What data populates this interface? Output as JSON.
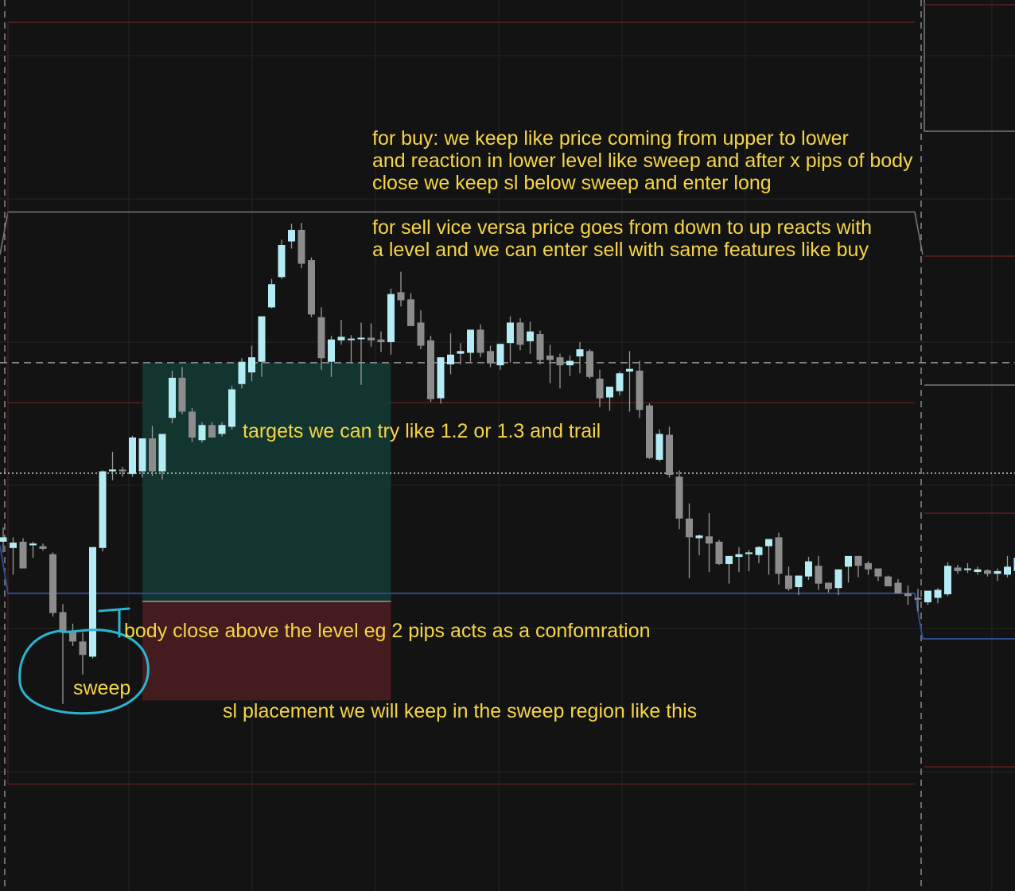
{
  "colors": {
    "background": "#131313",
    "grid": "#262626",
    "bull_candle": "#b3ecf5",
    "bear_candle": "#8c8c8c",
    "wick": "#9a9a9a",
    "annotation_text": "#f5d547",
    "sweep_marker": "#2bb5cf",
    "target_zone": "#133a33",
    "stop_zone": "#4a1d20",
    "key_level": "#2f4a8f",
    "range_upper": "#7a7a7a",
    "range_red": "#5a2020",
    "session_divider": "#8a8a8a"
  },
  "annotations": {
    "buy_note": "for buy: we keep like price coming from upper to lower\nand reaction in lower level like sweep and after x pips of body\nclose we keep sl below sweep and enter long",
    "sell_note": "for sell vice versa price goes from down to up reacts with\na level and we can enter sell with same features like buy",
    "targets_note": "targets we can try like 1.2 or 1.3 and trail",
    "body_close_note": "body close above the level eg 2 pips acts as a confomration",
    "sweep_label": "sweep",
    "sl_note": "sl placement we will keep in the sweep region like this"
  },
  "chart_data": {
    "type": "candlestick",
    "title": "",
    "xlabel": "",
    "ylabel": "",
    "y_range": [
      0,
      100
    ],
    "note": "no price axis visible; values in relative price units (100 = top of view)",
    "candles": [
      {
        "o": 39.2,
        "h": 40.8,
        "l": 38.0,
        "c": 39.7
      },
      {
        "o": 38.5,
        "h": 39.7,
        "l": 35.5,
        "c": 39.1
      },
      {
        "o": 39.2,
        "h": 39.6,
        "l": 36.4,
        "c": 36.2
      },
      {
        "o": 38.8,
        "h": 39.2,
        "l": 37.4,
        "c": 39.0
      },
      {
        "o": 38.7,
        "h": 39.0,
        "l": 38.2,
        "c": 38.4
      },
      {
        "o": 37.8,
        "h": 38.0,
        "l": 30.8,
        "c": 31.2
      },
      {
        "o": 31.3,
        "h": 32.2,
        "l": 21.0,
        "c": 29.0
      },
      {
        "o": 29.2,
        "h": 30.0,
        "l": 27.5,
        "c": 28.0
      },
      {
        "o": 28.0,
        "h": 29.0,
        "l": 24.3,
        "c": 26.5
      },
      {
        "o": 26.3,
        "h": 38.5,
        "l": 26.1,
        "c": 38.6
      },
      {
        "o": 38.5,
        "h": 47.2,
        "l": 38.1,
        "c": 47.1
      },
      {
        "o": 47.1,
        "h": 49.3,
        "l": 46.1,
        "c": 47.3
      },
      {
        "o": 47.3,
        "h": 47.6,
        "l": 46.5,
        "c": 47.1
      },
      {
        "o": 46.8,
        "h": 51.1,
        "l": 46.5,
        "c": 50.9
      },
      {
        "o": 47.1,
        "h": 50.8,
        "l": 46.4,
        "c": 50.8
      },
      {
        "o": 50.8,
        "h": 52.2,
        "l": 46.6,
        "c": 47.1
      },
      {
        "o": 47.1,
        "h": 51.2,
        "l": 46.2,
        "c": 51.3
      },
      {
        "o": 53.1,
        "h": 58.4,
        "l": 52.5,
        "c": 57.6
      },
      {
        "o": 57.6,
        "h": 58.8,
        "l": 53.5,
        "c": 53.8
      },
      {
        "o": 53.8,
        "h": 54.2,
        "l": 50.4,
        "c": 50.9
      },
      {
        "o": 50.6,
        "h": 52.6,
        "l": 50.3,
        "c": 52.3
      },
      {
        "o": 52.3,
        "h": 52.6,
        "l": 50.9,
        "c": 50.9
      },
      {
        "o": 51.3,
        "h": 52.6,
        "l": 51.0,
        "c": 52.3
      },
      {
        "o": 52.1,
        "h": 56.7,
        "l": 51.8,
        "c": 56.3
      },
      {
        "o": 56.9,
        "h": 59.8,
        "l": 56.4,
        "c": 59.4
      },
      {
        "o": 58.2,
        "h": 61.2,
        "l": 57.2,
        "c": 59.9
      },
      {
        "o": 59.4,
        "h": 64.0,
        "l": 57.7,
        "c": 64.5
      },
      {
        "o": 65.5,
        "h": 68.7,
        "l": 65.4,
        "c": 68.1
      },
      {
        "o": 68.9,
        "h": 73.1,
        "l": 68.7,
        "c": 72.5
      },
      {
        "o": 72.9,
        "h": 74.9,
        "l": 72.1,
        "c": 74.2
      },
      {
        "o": 74.2,
        "h": 75.0,
        "l": 69.9,
        "c": 70.4
      },
      {
        "o": 70.8,
        "h": 71.1,
        "l": 64.4,
        "c": 64.7
      },
      {
        "o": 64.4,
        "h": 65.5,
        "l": 58.5,
        "c": 59.8
      },
      {
        "o": 59.4,
        "h": 62.3,
        "l": 57.7,
        "c": 61.9
      },
      {
        "o": 61.8,
        "h": 64.1,
        "l": 61.3,
        "c": 62.2
      },
      {
        "o": 61.9,
        "h": 62.4,
        "l": 59.2,
        "c": 62.0
      },
      {
        "o": 62.0,
        "h": 63.8,
        "l": 56.8,
        "c": 62.1
      },
      {
        "o": 62.1,
        "h": 63.7,
        "l": 61.1,
        "c": 61.8
      },
      {
        "o": 61.9,
        "h": 62.8,
        "l": 60.5,
        "c": 61.6
      },
      {
        "o": 61.6,
        "h": 67.6,
        "l": 60.2,
        "c": 67.0
      },
      {
        "o": 67.2,
        "h": 69.5,
        "l": 65.6,
        "c": 66.3
      },
      {
        "o": 66.4,
        "h": 67.1,
        "l": 63.8,
        "c": 63.4
      },
      {
        "o": 63.8,
        "h": 65.2,
        "l": 60.8,
        "c": 61.2
      },
      {
        "o": 61.8,
        "h": 62.3,
        "l": 54.9,
        "c": 55.2
      },
      {
        "o": 55.3,
        "h": 59.8,
        "l": 54.7,
        "c": 59.9
      },
      {
        "o": 59.1,
        "h": 62.6,
        "l": 58.0,
        "c": 60.2
      },
      {
        "o": 60.3,
        "h": 61.5,
        "l": 59.1,
        "c": 60.6
      },
      {
        "o": 60.4,
        "h": 62.8,
        "l": 59.4,
        "c": 63.0
      },
      {
        "o": 63.0,
        "h": 63.6,
        "l": 59.9,
        "c": 60.4
      },
      {
        "o": 60.6,
        "h": 61.2,
        "l": 58.8,
        "c": 59.2
      },
      {
        "o": 59.0,
        "h": 61.4,
        "l": 58.5,
        "c": 61.4
      },
      {
        "o": 61.5,
        "h": 64.5,
        "l": 59.3,
        "c": 63.8
      },
      {
        "o": 63.8,
        "h": 64.3,
        "l": 60.7,
        "c": 61.3
      },
      {
        "o": 61.7,
        "h": 63.9,
        "l": 60.3,
        "c": 62.8
      },
      {
        "o": 62.5,
        "h": 62.9,
        "l": 59.1,
        "c": 59.6
      },
      {
        "o": 60.1,
        "h": 61.3,
        "l": 57.0,
        "c": 59.6
      },
      {
        "o": 59.9,
        "h": 60.3,
        "l": 56.4,
        "c": 59.0
      },
      {
        "o": 59.0,
        "h": 60.1,
        "l": 57.8,
        "c": 59.5
      },
      {
        "o": 60.0,
        "h": 61.6,
        "l": 58.1,
        "c": 60.8
      },
      {
        "o": 60.6,
        "h": 60.8,
        "l": 57.5,
        "c": 57.7
      },
      {
        "o": 57.5,
        "h": 58.5,
        "l": 54.3,
        "c": 55.3
      },
      {
        "o": 55.4,
        "h": 56.6,
        "l": 53.9,
        "c": 56.6
      },
      {
        "o": 56.1,
        "h": 58.3,
        "l": 55.6,
        "c": 58.1
      },
      {
        "o": 58.3,
        "h": 60.6,
        "l": 53.8,
        "c": 58.6
      },
      {
        "o": 58.4,
        "h": 59.5,
        "l": 53.1,
        "c": 54.0
      },
      {
        "o": 54.5,
        "h": 54.7,
        "l": 48.5,
        "c": 48.6
      },
      {
        "o": 48.4,
        "h": 51.8,
        "l": 48.2,
        "c": 51.3
      },
      {
        "o": 51.2,
        "h": 52.1,
        "l": 46.4,
        "c": 46.7
      },
      {
        "o": 46.5,
        "h": 47.2,
        "l": 40.6,
        "c": 41.8
      },
      {
        "o": 41.8,
        "h": 43.5,
        "l": 35.1,
        "c": 39.7
      },
      {
        "o": 39.6,
        "h": 40.0,
        "l": 37.7,
        "c": 39.9
      },
      {
        "o": 39.8,
        "h": 42.4,
        "l": 35.8,
        "c": 39.0
      },
      {
        "o": 39.2,
        "h": 39.4,
        "l": 36.6,
        "c": 36.7
      },
      {
        "o": 36.7,
        "h": 37.3,
        "l": 34.5,
        "c": 37.6
      },
      {
        "o": 37.5,
        "h": 38.6,
        "l": 35.8,
        "c": 37.8
      },
      {
        "o": 38.0,
        "h": 38.3,
        "l": 35.9,
        "c": 38.0
      },
      {
        "o": 37.7,
        "h": 38.7,
        "l": 36.8,
        "c": 38.6
      },
      {
        "o": 38.7,
        "h": 39.3,
        "l": 35.5,
        "c": 39.5
      },
      {
        "o": 39.7,
        "h": 40.2,
        "l": 34.4,
        "c": 35.6
      },
      {
        "o": 35.4,
        "h": 36.4,
        "l": 33.7,
        "c": 33.9
      },
      {
        "o": 34.1,
        "h": 34.8,
        "l": 33.2,
        "c": 35.4
      },
      {
        "o": 35.3,
        "h": 37.5,
        "l": 34.9,
        "c": 37.0
      },
      {
        "o": 36.5,
        "h": 37.6,
        "l": 33.8,
        "c": 34.5
      },
      {
        "o": 34.6,
        "h": 34.6,
        "l": 33.5,
        "c": 33.9
      },
      {
        "o": 34.0,
        "h": 35.3,
        "l": 33.2,
        "c": 36.1
      },
      {
        "o": 36.4,
        "h": 37.4,
        "l": 34.6,
        "c": 37.6
      },
      {
        "o": 37.6,
        "h": 37.6,
        "l": 35.2,
        "c": 36.5
      },
      {
        "o": 36.8,
        "h": 37.0,
        "l": 35.5,
        "c": 36.1
      },
      {
        "o": 36.2,
        "h": 36.1,
        "l": 34.8,
        "c": 35.3
      },
      {
        "o": 35.3,
        "h": 35.4,
        "l": 34.2,
        "c": 34.2
      },
      {
        "o": 34.6,
        "h": 35.0,
        "l": 33.7,
        "c": 33.4
      },
      {
        "o": 33.4,
        "h": 34.3,
        "l": 32.1,
        "c": 33.1
      },
      {
        "o": 32.9,
        "h": 33.9,
        "l": 31.4,
        "c": 32.7
      },
      {
        "o": 32.4,
        "h": 33.6,
        "l": 32.1,
        "c": 33.7
      },
      {
        "o": 32.9,
        "h": 34.0,
        "l": 32.3,
        "c": 33.8
      },
      {
        "o": 33.3,
        "h": 36.9,
        "l": 33.1,
        "c": 36.5
      },
      {
        "o": 36.3,
        "h": 36.6,
        "l": 35.6,
        "c": 35.9
      },
      {
        "o": 36.1,
        "h": 36.8,
        "l": 35.7,
        "c": 36.2
      },
      {
        "o": 35.8,
        "h": 36.4,
        "l": 35.5,
        "c": 36.1
      },
      {
        "o": 36.0,
        "h": 36.1,
        "l": 35.3,
        "c": 35.6
      },
      {
        "o": 35.6,
        "h": 36.2,
        "l": 34.8,
        "c": 35.9
      },
      {
        "o": 35.5,
        "h": 37.6,
        "l": 35.2,
        "c": 36.4
      },
      {
        "o": 35.9,
        "h": 37.6,
        "l": 35.2,
        "c": 37.4
      },
      {
        "o": 37.2,
        "h": 38.0,
        "l": 35.7,
        "c": 36.7
      },
      {
        "o": 36.9,
        "h": 38.1,
        "l": 35.3,
        "c": 36.5
      },
      {
        "o": 36.2,
        "h": 37.7,
        "l": 36.1,
        "c": 37.9
      },
      {
        "o": 37.9,
        "h": 38.0,
        "l": 36.3,
        "c": 36.3
      },
      {
        "o": 36.3,
        "h": 36.7,
        "l": 33.9,
        "c": 34.2
      },
      {
        "o": 34.3,
        "h": 35.6,
        "l": 33.3,
        "c": 35.1
      },
      {
        "o": 35.6,
        "h": 36.3,
        "l": 31.7,
        "c": 31.8
      },
      {
        "o": 31.8,
        "h": 38.8,
        "l": 27.5,
        "c": 38.6
      },
      {
        "o": 39.5,
        "h": 41.6,
        "l": 38.3,
        "c": 41.0
      }
    ],
    "levels": [
      {
        "name": "buy-sweep-level",
        "value": 33.4,
        "style": "solid",
        "color": "#2f4a8f"
      },
      {
        "name": "entry-dashed-level",
        "value": 59.3,
        "style": "dashed",
        "color": "#9c9c9c"
      },
      {
        "name": "dotted-level",
        "value": 46.9,
        "style": "dotted",
        "color": "#d9d9d9"
      },
      {
        "name": "range-upper",
        "value": 76.2,
        "style": "solid",
        "color": "#7a7a7a"
      },
      {
        "name": "range-red-top",
        "value": 97.5,
        "style": "solid",
        "color": "#5a2020"
      },
      {
        "name": "range-red-mid",
        "value": 54.8,
        "style": "solid",
        "color": "#5a2020"
      },
      {
        "name": "range-red-low",
        "value": 12.0,
        "style": "solid",
        "color": "#5a2020"
      }
    ],
    "position_tool": {
      "start_candle": 14,
      "end_candle": 39,
      "entry": 32.5,
      "target": 59.3,
      "stop": 21.4
    }
  }
}
